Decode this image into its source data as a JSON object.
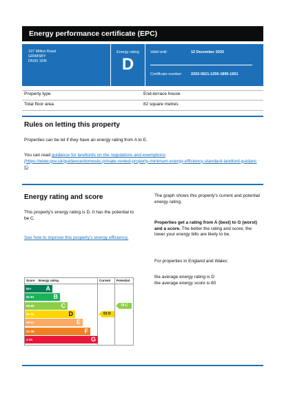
{
  "header": {
    "title": "Energy performance certificate (EPC)"
  },
  "summary": {
    "address": [
      "197 Milton Road",
      "GRIMSBY",
      "DN33 1DN"
    ],
    "rating_label": "Energy rating",
    "rating": "D",
    "valid_until_label": "Valid until:",
    "valid_until": "12 December 2032",
    "certificate_label": "Certificate number:",
    "certificate_number": "2202-5621-1259-1895-1651"
  },
  "property": {
    "rows": [
      [
        "Property type",
        "End-terrace house"
      ],
      [
        "Total floor area",
        "82 square metres"
      ]
    ]
  },
  "rules": {
    "title": "Rules on letting this property",
    "text": "Properties can be let if they have an energy rating from A to E.",
    "prefix": "You can read",
    "link": "guidance for landlords on the regulations and exemptions",
    "url": "(https://www.gov.uk/guidance/domestic-private-rented-property-minimum-energy-efficiency-standard-landlord-guidance)",
    "suffix": "."
  },
  "rating": {
    "title": "Energy rating and score",
    "text": "This property's energy rating is D. It has the potential to be C.",
    "link": "See how to improve this property's energy efficiency.",
    "graph_text": "The graph shows this property's current and potential energy rating.",
    "bold": "Properties get a rating from A (best) to G (worst) and a score.",
    "explain": "The better the rating and score, the lower your energy bills are likely to be.",
    "region": "For properties in England and Wales:",
    "average_rating": "the average energy rating is D",
    "average_score": "the average energy score is 60"
  },
  "graph": {
    "headers": [
      "Score",
      "Energy rating",
      "Current",
      "Potential"
    ],
    "bands": [
      {
        "range": "92+",
        "letter": "A"
      },
      {
        "range": "81-91",
        "letter": "B"
      },
      {
        "range": "69-80",
        "letter": "C"
      },
      {
        "range": "55-68",
        "letter": "D"
      },
      {
        "range": "39-54",
        "letter": "E"
      },
      {
        "range": "21-38",
        "letter": "F"
      },
      {
        "range": "1-20",
        "letter": "G"
      }
    ],
    "current": {
      "score": 63,
      "letter": "D"
    },
    "potential": {
      "score": 78,
      "letter": "C"
    }
  }
}
